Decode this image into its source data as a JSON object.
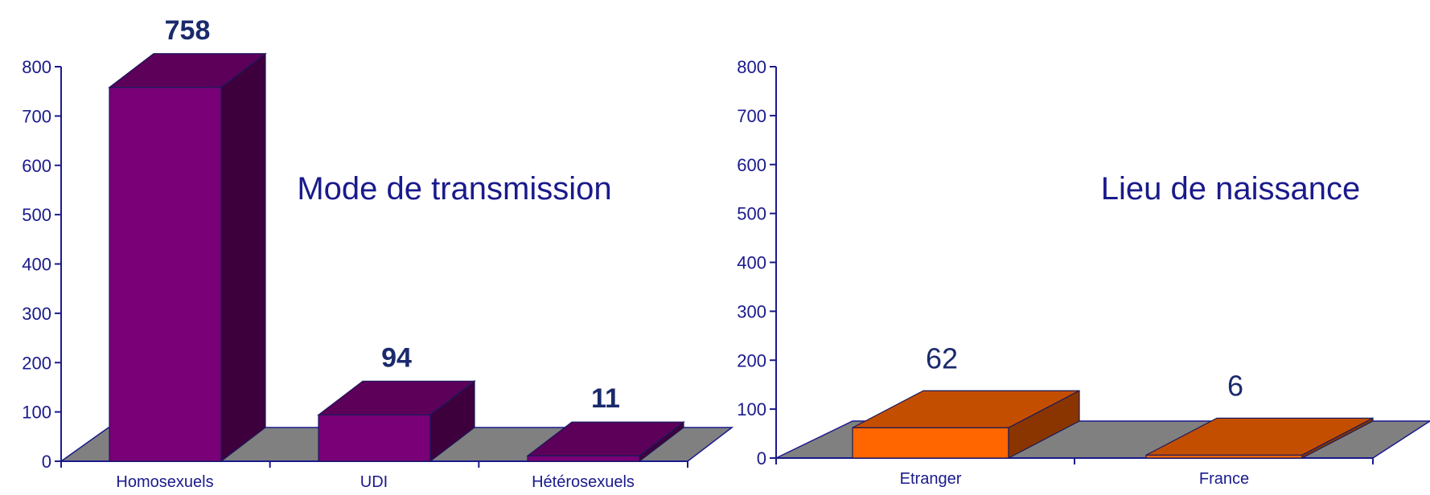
{
  "chart_data": [
    {
      "type": "bar",
      "title": "Mode de transmission",
      "categories": [
        "Homosexuels",
        "UDI",
        "Hétérosexuels"
      ],
      "values": [
        758,
        94,
        11
      ],
      "ylim": [
        0,
        800
      ],
      "yticks": [
        "0",
        "100",
        "200",
        "300",
        "400",
        "500",
        "600",
        "700",
        "800"
      ],
      "value_labels": [
        "758",
        "94",
        "11"
      ],
      "colors": {
        "front": "#7a0078",
        "top": "#5c005a",
        "side": "#3e003d",
        "floor": "#808080",
        "axis": "#1a1a8c"
      }
    },
    {
      "type": "bar",
      "title": "Lieu de naissance",
      "categories": [
        "Etranger",
        "France"
      ],
      "values": [
        62,
        6
      ],
      "ylim": [
        0,
        800
      ],
      "yticks": [
        "0",
        "100",
        "200",
        "300",
        "400",
        "500",
        "600",
        "700",
        "800"
      ],
      "value_labels": [
        "62",
        "6"
      ],
      "colors": {
        "front": "#ff6600",
        "top": "#c44e00",
        "side": "#8a3500",
        "floor": "#808080",
        "axis": "#1a1a8c"
      }
    }
  ]
}
